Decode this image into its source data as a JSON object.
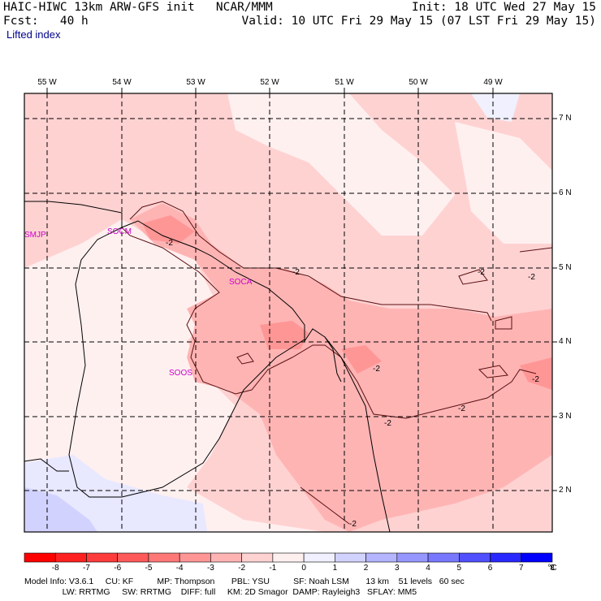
{
  "header": {
    "title_left": "HAIC-HIWC 13km ARW-GFS init   NCAR/MMM",
    "init": "Init: 18 UTC Wed 27 May 15",
    "fcst": "Fcst:   40 h",
    "valid": "Valid: 10 UTC Fri 29 May 15 (07 LST Fri 29 May 15)",
    "field": "Lifted index"
  },
  "lon_labels": [
    "55 W",
    "54 W",
    "53 W",
    "52 W",
    "51 W",
    "50 W",
    "49 W"
  ],
  "lat_labels": [
    "7 N",
    "6 N",
    "5 N",
    "4 N",
    "3 N",
    "2 N"
  ],
  "stations": [
    "SMJP",
    "SOCM",
    "SOCA",
    "SOOS"
  ],
  "contour_labels": [
    "-2",
    "-2",
    "-2",
    "-2",
    "-2",
    "-2",
    "-2",
    "-2",
    "-2"
  ],
  "colorbar": {
    "labels": [
      "-8",
      "-7",
      "-6",
      "-5",
      "-4",
      "-3",
      "-2",
      "-1",
      "0",
      "1",
      "2",
      "3",
      "4",
      "5",
      "6",
      "7",
      "8"
    ],
    "unit": "°C",
    "colors": [
      "#ff0000",
      "#ff2020",
      "#ff3c3c",
      "#ff5a5a",
      "#ff7878",
      "#ff9696",
      "#ffb4b4",
      "#ffd2d2",
      "#fff0f0",
      "#f0f0ff",
      "#d2d2ff",
      "#b4b4ff",
      "#9696ff",
      "#7878ff",
      "#5050ff",
      "#2828ff",
      "#0000ff"
    ]
  },
  "footer": {
    "line1": "Model Info: V3.6.1     CU: KF          MP: Thompson       PBL: YSU          SF: Noah LSM       13 km    51 levels   60 sec",
    "line2": "                LW: RRTMG     SW: RRTMG    DIFF: full     KM: 2D Smagor  DAMP: Rayleigh3   SFLAY: MM5"
  }
}
